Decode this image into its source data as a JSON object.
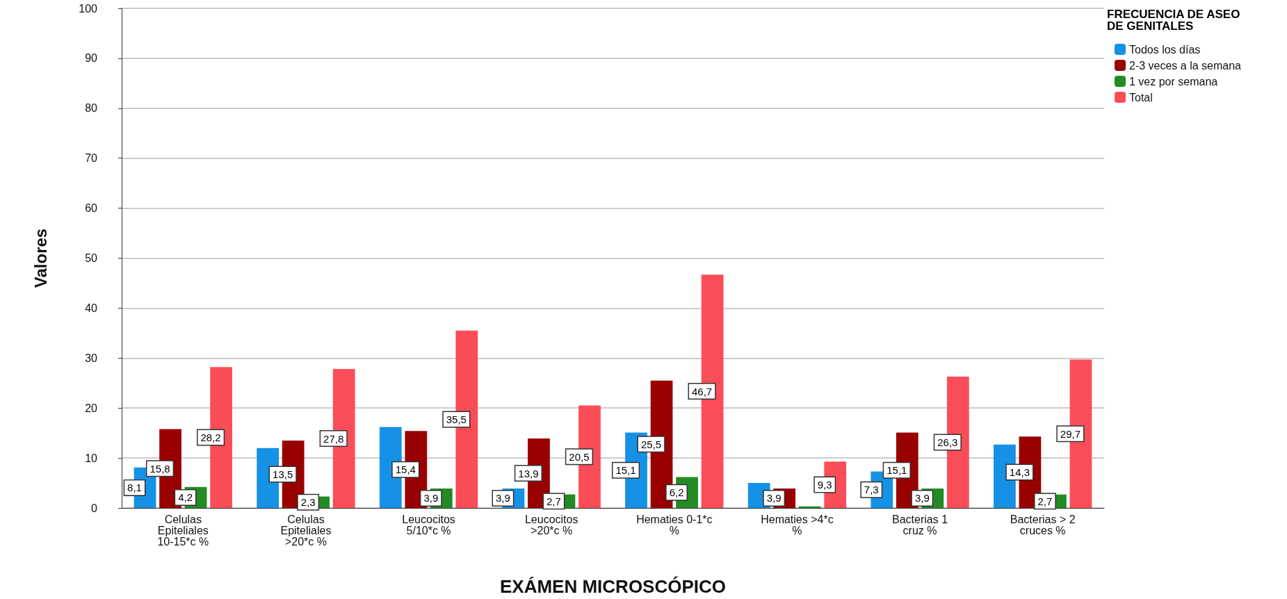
{
  "chart_data": {
    "type": "bar",
    "xlabel": "EXÁMEN MICROSCÓPICO",
    "ylabel": "Valores",
    "legend_title": "FRECUENCIA DE ASEO DE GENITALES",
    "categories": [
      "Celulas Epiteliales 10-15*c %",
      "Celulas Epiteliales >20*c %",
      "Leucocitos 5/10*c %",
      "Leucocitos >20*c %",
      "Hematies 0-1*c %",
      "Hematies >4*c %",
      "Bacterias 1 cruz %",
      "Bacterias > 2 cruces %"
    ],
    "series": [
      {
        "name": "Todos los días",
        "color": "#1591e6",
        "values": [
          8.1,
          12,
          16.2,
          3.9,
          15.1,
          5,
          7.3,
          12.7
        ],
        "value_labels": [
          "8,1",
          null,
          null,
          "3,9",
          "15,1",
          null,
          "7,3",
          null
        ]
      },
      {
        "name": "2-3 veces a la semana",
        "color": "#990000",
        "values": [
          15.8,
          13.5,
          15.4,
          13.9,
          25.5,
          3.9,
          15.1,
          14.3
        ],
        "value_labels": [
          "15,8",
          "13,5",
          "15,4",
          "13,9",
          "25,5",
          "3,9",
          "15,1",
          "14,3"
        ]
      },
      {
        "name": "1 vez por semana",
        "color": "#238b23",
        "values": [
          4.2,
          2.3,
          3.9,
          2.7,
          6.2,
          0.3,
          3.9,
          2.7
        ],
        "value_labels": [
          "4,2",
          "2,3",
          "3,9",
          "2,7",
          "6,2",
          null,
          "3,9",
          "2,7"
        ]
      },
      {
        "name": "Total",
        "color": "#fb4d57",
        "values": [
          28.2,
          27.8,
          35.5,
          20.5,
          46.7,
          9.3,
          26.3,
          29.7
        ],
        "value_labels": [
          "28,2",
          "27,8",
          "35,5",
          "20,5",
          "46,7",
          "9,3",
          "26,3",
          "29,7"
        ]
      }
    ],
    "ylim": [
      0,
      100
    ],
    "yticks": [
      0,
      10,
      20,
      30,
      40,
      50,
      60,
      70,
      80,
      90,
      100
    ],
    "grid": "y",
    "legend": "top right"
  }
}
